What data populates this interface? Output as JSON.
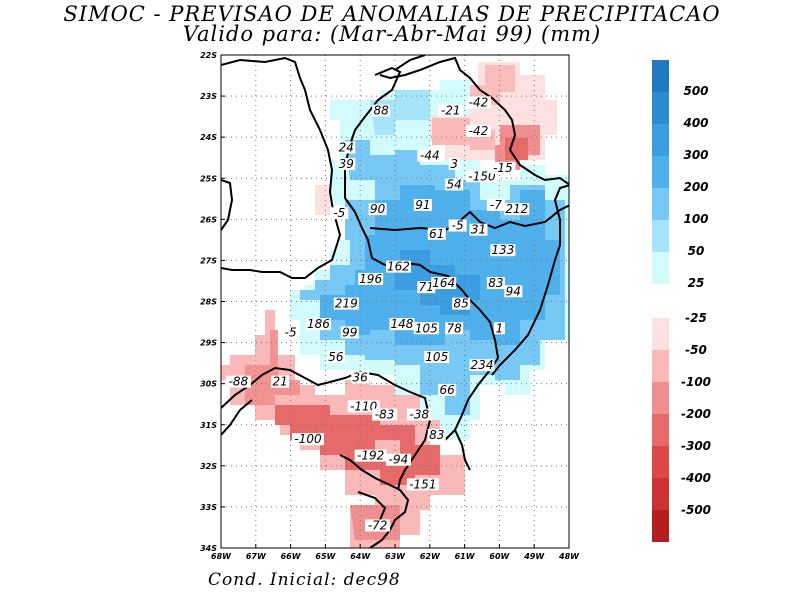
{
  "title_line1": "SIMOC - PREVISAO DE ANOMALIAS DE PRECIPITACAO",
  "title_line2": "Valido para: (Mar-Abr-Mai 99) (mm)",
  "footer": "Cond. Inicial: dec98",
  "lon_ticks": [
    "68W",
    "67W",
    "66W",
    "65W",
    "64W",
    "63W",
    "62W",
    "61W",
    "60W",
    "49W",
    "48W"
  ],
  "lat_ticks": [
    "22S",
    "23S",
    "24S",
    "25S",
    "26S",
    "27S",
    "28S",
    "29S",
    "30S",
    "31S",
    "32S",
    "33S",
    "34S"
  ],
  "legend_positive": [
    {
      "label": "500",
      "color": "#1f78c0"
    },
    {
      "label": "400",
      "color": "#2c8ad0"
    },
    {
      "label": "300",
      "color": "#3c9ee0"
    },
    {
      "label": "200",
      "color": "#4fb0ec"
    },
    {
      "label": "100",
      "color": "#77c8f5"
    },
    {
      "label": "50",
      "color": "#a6e4fb"
    },
    {
      "label": "25",
      "color": "#d2fbfd"
    }
  ],
  "legend_negative": [
    {
      "label": "-25",
      "color": "#fde0e0"
    },
    {
      "label": "-50",
      "color": "#f9b9b9"
    },
    {
      "label": "-100",
      "color": "#f08f8f"
    },
    {
      "label": "-200",
      "color": "#e66a6a"
    },
    {
      "label": "-300",
      "color": "#dc4848"
    },
    {
      "label": "-400",
      "color": "#cd3232"
    },
    {
      "label": "-500",
      "color": "#b41e1e"
    }
  ],
  "map_labels": [
    {
      "text": "88",
      "lon": 63.4,
      "lat": 23.4
    },
    {
      "text": "-21",
      "lon": 61.4,
      "lat": 23.4
    },
    {
      "text": "-42",
      "lon": 60.6,
      "lat": 23.2
    },
    {
      "text": "-42",
      "lon": 60.6,
      "lat": 23.9
    },
    {
      "text": "24",
      "lon": 64.4,
      "lat": 24.3
    },
    {
      "text": "39",
      "lon": 64.4,
      "lat": 24.7
    },
    {
      "text": "-44",
      "lon": 62.0,
      "lat": 24.5
    },
    {
      "text": "3",
      "lon": 61.3,
      "lat": 24.7
    },
    {
      "text": "-150",
      "lon": 60.5,
      "lat": 25.0
    },
    {
      "text": "-15",
      "lon": 59.9,
      "lat": 24.8
    },
    {
      "text": "54",
      "lon": 61.3,
      "lat": 25.2
    },
    {
      "text": "-5",
      "lon": 64.6,
      "lat": 25.9
    },
    {
      "text": "90",
      "lon": 63.5,
      "lat": 25.8
    },
    {
      "text": "91",
      "lon": 62.2,
      "lat": 25.7
    },
    {
      "text": "-7",
      "lon": 60.1,
      "lat": 25.7
    },
    {
      "text": "212",
      "lon": 59.5,
      "lat": 25.8
    },
    {
      "text": "-5",
      "lon": 61.2,
      "lat": 26.2
    },
    {
      "text": "31",
      "lon": 60.6,
      "lat": 26.3
    },
    {
      "text": "61",
      "lon": 61.8,
      "lat": 26.4
    },
    {
      "text": "133",
      "lon": 59.9,
      "lat": 26.8
    },
    {
      "text": "162",
      "lon": 62.9,
      "lat": 27.2
    },
    {
      "text": "196",
      "lon": 63.7,
      "lat": 27.5
    },
    {
      "text": "71",
      "lon": 62.1,
      "lat": 27.7
    },
    {
      "text": "164",
      "lon": 61.6,
      "lat": 27.6
    },
    {
      "text": "83",
      "lon": 60.1,
      "lat": 27.6
    },
    {
      "text": "94",
      "lon": 59.6,
      "lat": 27.8
    },
    {
      "text": "85",
      "lon": 61.1,
      "lat": 28.1
    },
    {
      "text": "219",
      "lon": 64.4,
      "lat": 28.1
    },
    {
      "text": "186",
      "lon": 65.2,
      "lat": 28.6
    },
    {
      "text": "-5",
      "lon": 66.0,
      "lat": 28.8
    },
    {
      "text": "99",
      "lon": 64.3,
      "lat": 28.8
    },
    {
      "text": "148",
      "lon": 62.8,
      "lat": 28.6
    },
    {
      "text": "105",
      "lon": 62.1,
      "lat": 28.7
    },
    {
      "text": "78",
      "lon": 61.3,
      "lat": 28.7
    },
    {
      "text": "1",
      "lon": 60.0,
      "lat": 28.7
    },
    {
      "text": "56",
      "lon": 64.7,
      "lat": 29.4
    },
    {
      "text": "105",
      "lon": 61.8,
      "lat": 29.4
    },
    {
      "text": "234",
      "lon": 60.5,
      "lat": 29.6
    },
    {
      "text": "-88",
      "lon": 67.5,
      "lat": 30.0
    },
    {
      "text": "21",
      "lon": 66.3,
      "lat": 30.0
    },
    {
      "text": "36",
      "lon": 64.0,
      "lat": 29.9
    },
    {
      "text": "66",
      "lon": 61.5,
      "lat": 30.2
    },
    {
      "text": "-110",
      "lon": 63.9,
      "lat": 30.6
    },
    {
      "text": "-83",
      "lon": 63.3,
      "lat": 30.8
    },
    {
      "text": "-38",
      "lon": 62.3,
      "lat": 30.8
    },
    {
      "text": "83",
      "lon": 61.8,
      "lat": 31.3
    },
    {
      "text": "-100",
      "lon": 65.5,
      "lat": 31.4
    },
    {
      "text": "-192",
      "lon": 63.7,
      "lat": 31.8
    },
    {
      "text": "-94",
      "lon": 62.9,
      "lat": 31.9
    },
    {
      "text": "-151",
      "lon": 62.2,
      "lat": 32.5
    },
    {
      "text": "-72",
      "lon": 63.5,
      "lat": 33.5
    }
  ]
}
